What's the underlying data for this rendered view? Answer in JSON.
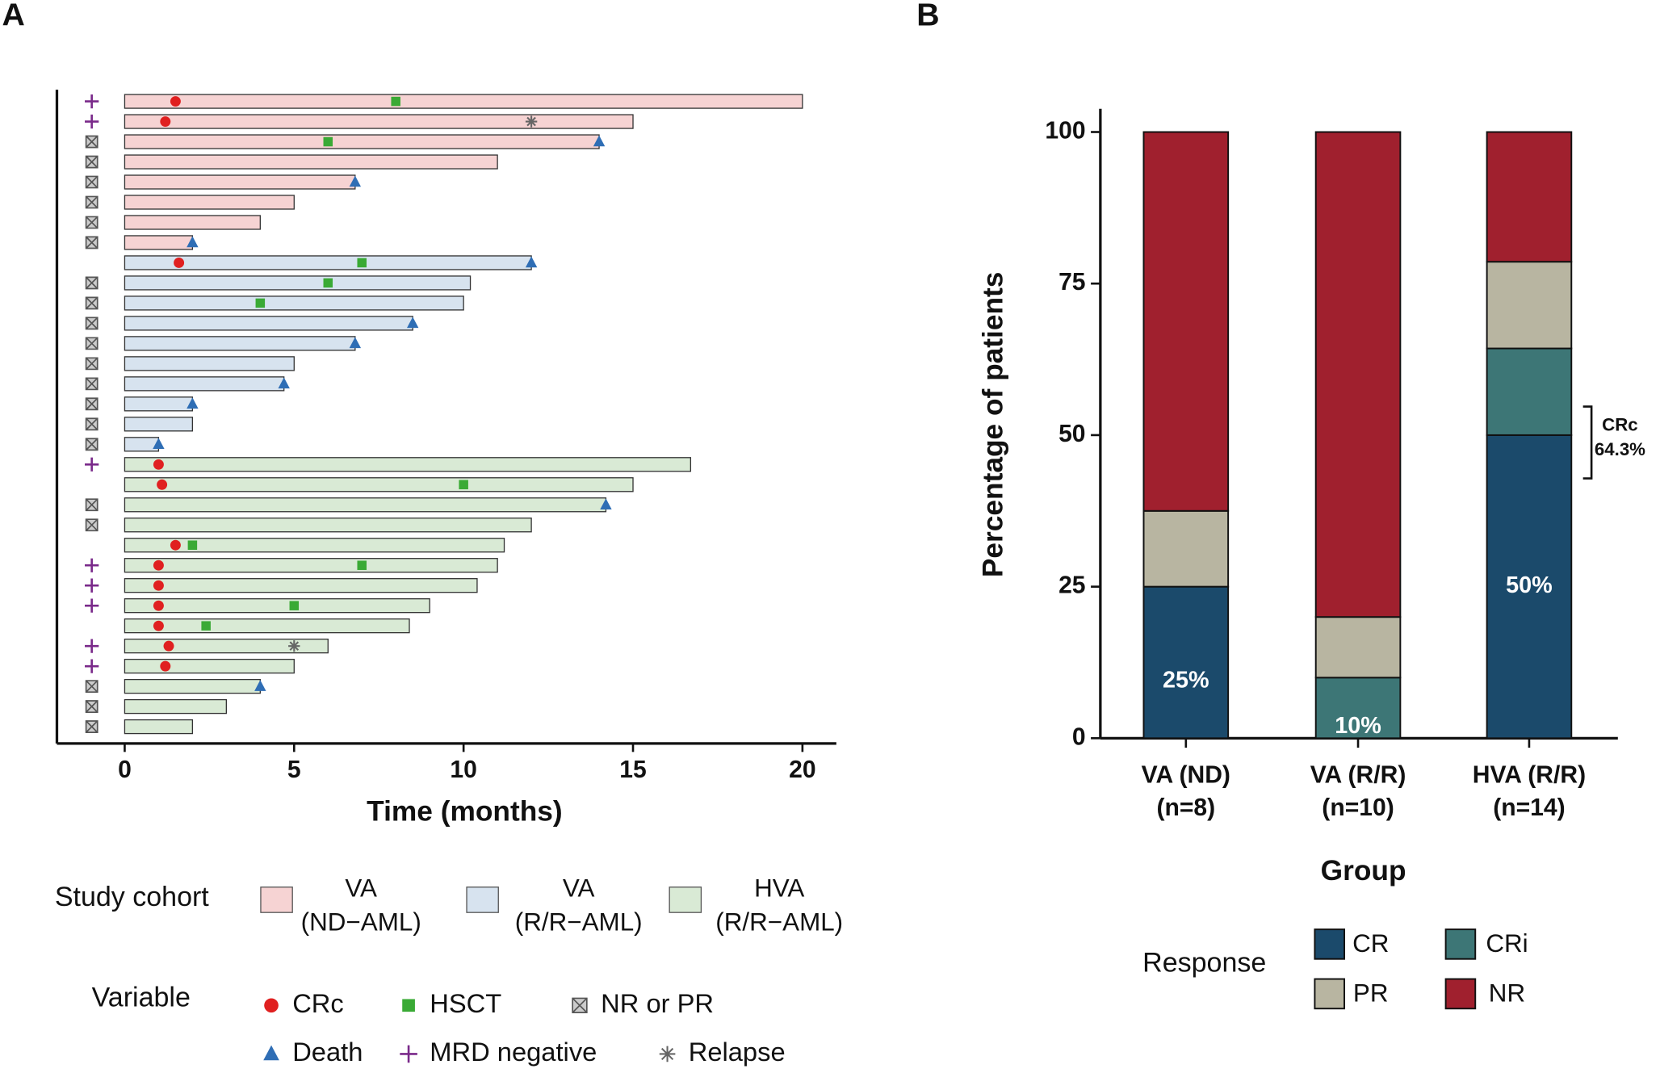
{
  "chart_data": [
    {
      "type": "swimmer",
      "panel_label": "A",
      "x_label": "Time (months)",
      "xlim": [
        -2,
        21
      ],
      "xticks": [
        0,
        5,
        10,
        15,
        20
      ],
      "legend_title": "Study cohort",
      "marker_legend_title": "Variable",
      "series": [
        {
          "name": "VA\n(ND−AML)",
          "color": "#f6d3d3",
          "values": [
            20,
            15,
            14,
            11,
            6.8,
            5,
            4,
            2
          ]
        },
        {
          "name": "VA\n(R/R−AML)",
          "color": "#d7e3ef",
          "values": [
            12,
            10.2,
            10,
            8.5,
            6.8,
            5,
            4.7,
            2,
            2,
            1
          ]
        },
        {
          "name": "HVA\n(R/R−AML)",
          "color": "#d9ead5",
          "values": [
            16.7,
            15,
            14.2,
            12,
            11.2,
            11,
            10.4,
            9,
            8.4,
            6,
            5,
            4,
            3,
            2
          ]
        }
      ],
      "markers": [
        {
          "name": "CRc",
          "color": "#e02020",
          "symbol": "circle",
          "values": [
            1.5,
            1.2,
            null,
            null,
            null,
            null,
            null,
            null,
            1.6,
            null,
            null,
            null,
            null,
            null,
            null,
            null,
            null,
            null,
            1,
            1.1,
            null,
            null,
            1.5,
            1,
            1,
            1,
            1,
            1.3,
            1.2,
            null,
            null,
            null
          ]
        },
        {
          "name": "HSCT",
          "color": "#3aaa35",
          "symbol": "square",
          "values": [
            8,
            null,
            6,
            null,
            null,
            null,
            null,
            null,
            7,
            6,
            4,
            null,
            null,
            null,
            null,
            null,
            null,
            null,
            null,
            10,
            null,
            null,
            2,
            7,
            null,
            5,
            2.4,
            null,
            null,
            null,
            null,
            null
          ]
        },
        {
          "name": "NR or PR",
          "color": "#555555",
          "symbol": "boxx",
          "values": [
            false,
            false,
            true,
            true,
            true,
            true,
            true,
            true,
            false,
            true,
            true,
            true,
            true,
            true,
            true,
            true,
            true,
            true,
            false,
            false,
            true,
            true,
            false,
            false,
            false,
            false,
            false,
            false,
            false,
            true,
            true,
            true
          ]
        },
        {
          "name": "Death",
          "color": "#2f6eb5",
          "symbol": "triangle",
          "values": [
            null,
            null,
            14,
            null,
            6.8,
            null,
            null,
            2,
            12,
            null,
            null,
            8.5,
            6.8,
            null,
            4.7,
            2,
            null,
            1,
            null,
            null,
            14.2,
            null,
            null,
            null,
            null,
            null,
            null,
            null,
            null,
            4,
            null,
            null
          ]
        },
        {
          "name": "MRD negative",
          "color": "#7a2a8a",
          "symbol": "plus",
          "values": [
            true,
            true,
            false,
            false,
            false,
            false,
            false,
            false,
            false,
            false,
            false,
            false,
            false,
            false,
            false,
            false,
            false,
            false,
            true,
            false,
            false,
            false,
            false,
            true,
            true,
            true,
            false,
            true,
            true,
            false,
            false,
            false
          ]
        },
        {
          "name": "Relapse",
          "color": "#666666",
          "symbol": "asterisk",
          "values": [
            null,
            12,
            null,
            null,
            null,
            null,
            null,
            null,
            null,
            null,
            null,
            null,
            null,
            null,
            null,
            null,
            null,
            null,
            null,
            null,
            null,
            null,
            null,
            null,
            null,
            null,
            null,
            5,
            null,
            null,
            null,
            null
          ]
        }
      ]
    },
    {
      "type": "stacked_bar",
      "panel_label": "B",
      "x_label": "Group",
      "y_label": "Percentage of patients",
      "ylim": [
        0,
        100
      ],
      "yticks": [
        0,
        25,
        50,
        75,
        100
      ],
      "categories": [
        "VA (ND)\n(n=8)",
        "VA (R/R)\n(n=10)",
        "HVA (R/R)\n(n=14)"
      ],
      "legend_title": "Response",
      "annotation": "CRc\n64.3%",
      "series": [
        {
          "name": "CR",
          "color": "#1b4a6b",
          "values": [
            25,
            0,
            50
          ],
          "value_labels": [
            "25%",
            null,
            "50%"
          ]
        },
        {
          "name": "CRi",
          "color": "#3d7676",
          "values": [
            0,
            10,
            14.3
          ],
          "value_labels": [
            null,
            "10%",
            null
          ]
        },
        {
          "name": "PR",
          "color": "#b8b5a1",
          "values": [
            12.5,
            10,
            14.3
          ]
        },
        {
          "name": "NR",
          "color": "#a0202e",
          "values": [
            62.5,
            80,
            21.4
          ]
        }
      ]
    }
  ]
}
